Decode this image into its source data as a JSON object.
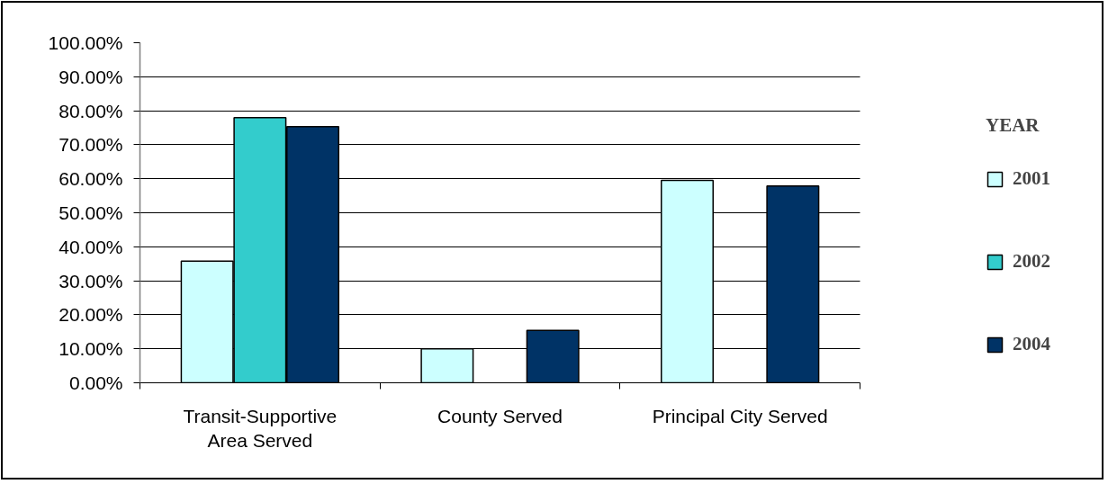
{
  "chart_data": {
    "type": "bar",
    "categories": [
      "Transit-Supportive Area Served",
      "County Served",
      "Principal City Served"
    ],
    "series": [
      {
        "name": "2001",
        "color": "#ccffff",
        "values": [
          35.8,
          10.0,
          59.5
        ]
      },
      {
        "name": "2002",
        "color": "#33cccc",
        "values": [
          78.0,
          null,
          null
        ]
      },
      {
        "name": "2004",
        "color": "#003366",
        "values": [
          75.3,
          15.4,
          57.9
        ]
      }
    ],
    "ylim": [
      0,
      100
    ],
    "yticks": [
      {
        "value": 0,
        "label": "0.00%"
      },
      {
        "value": 10,
        "label": "10.00%"
      },
      {
        "value": 20,
        "label": "20.00%"
      },
      {
        "value": 30,
        "label": "30.00%"
      },
      {
        "value": 40,
        "label": "40.00%"
      },
      {
        "value": 50,
        "label": "50.00%"
      },
      {
        "value": 60,
        "label": "60.00%"
      },
      {
        "value": 70,
        "label": "70.00%"
      },
      {
        "value": 80,
        "label": "80.00%"
      },
      {
        "value": 90,
        "label": "90.00%"
      },
      {
        "value": 100,
        "label": "100.00%"
      }
    ],
    "grid": "y",
    "legend": "right",
    "legend_title": "YEAR"
  }
}
